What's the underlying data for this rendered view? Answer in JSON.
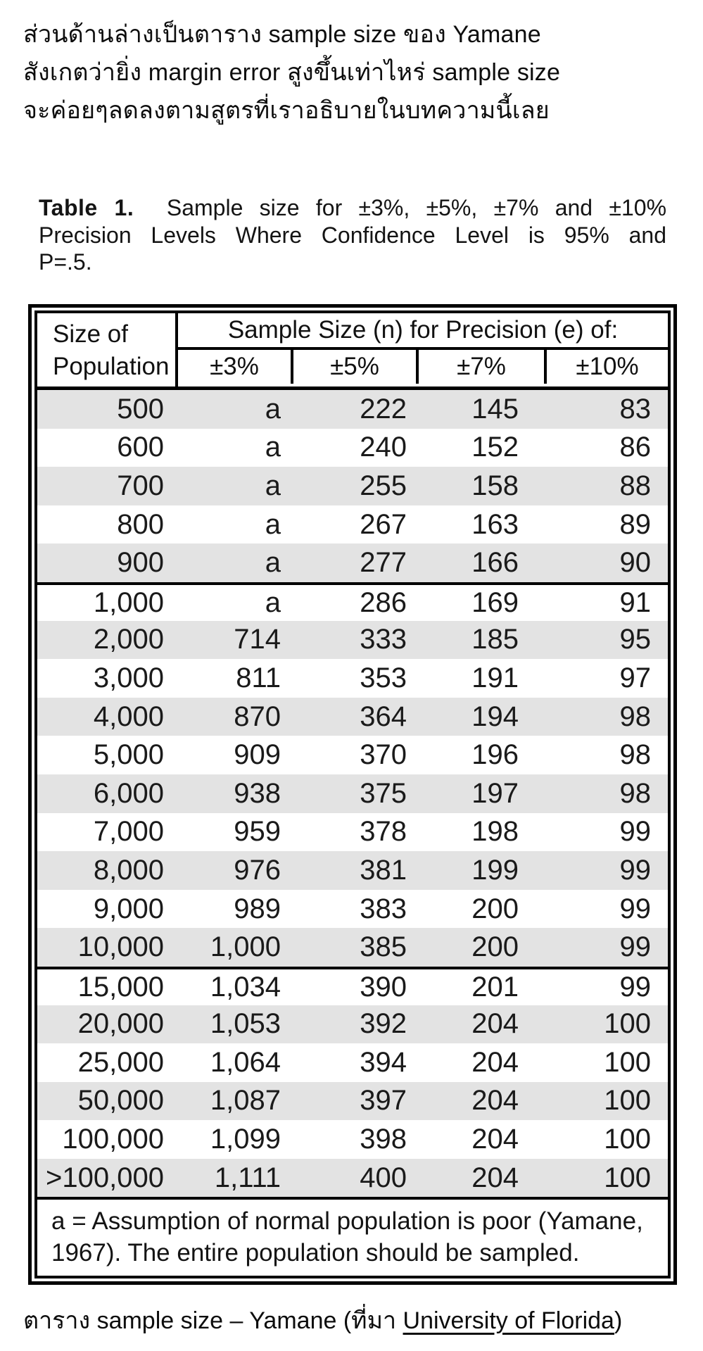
{
  "intro": {
    "lines": [
      "ส่วนด้านล่างเป็นตาราง sample size ของ Yamane",
      "สังเกตว่ายิ่ง margin error สูงขึ้นเท่าไหร่ sample size",
      "จะค่อยๆลดลงตามสูตรที่เราอธิบายในบทความนี้เลย"
    ]
  },
  "table_title": {
    "label": "Table 1.",
    "line1_rest": "Sample size for ±3%, ±5%, ±7% and ±10%",
    "line2": "Precision Levels Where Confidence Level is 95% and",
    "line3": "P=.5."
  },
  "table": {
    "header": {
      "col1_line1": "Size of",
      "col1_line2": "Population",
      "span_label": "Sample Size (n) for Precision (e) of:",
      "precisions": [
        "±3%",
        "±5%",
        "±7%",
        "±10%"
      ]
    },
    "columns": [
      "Size of Population",
      "±3%",
      "±5%",
      "±7%",
      "±10%"
    ],
    "rows": [
      [
        "500",
        "a",
        "222",
        "145",
        "83"
      ],
      [
        "600",
        "a",
        "240",
        "152",
        "86"
      ],
      [
        "700",
        "a",
        "255",
        "158",
        "88"
      ],
      [
        "800",
        "a",
        "267",
        "163",
        "89"
      ],
      [
        "900",
        "a",
        "277",
        "166",
        "90"
      ],
      [
        "1,000",
        "a",
        "286",
        "169",
        "91"
      ],
      [
        "2,000",
        "714",
        "333",
        "185",
        "95"
      ],
      [
        "3,000",
        "811",
        "353",
        "191",
        "97"
      ],
      [
        "4,000",
        "870",
        "364",
        "194",
        "98"
      ],
      [
        "5,000",
        "909",
        "370",
        "196",
        "98"
      ],
      [
        "6,000",
        "938",
        "375",
        "197",
        "98"
      ],
      [
        "7,000",
        "959",
        "378",
        "198",
        "99"
      ],
      [
        "8,000",
        "976",
        "381",
        "199",
        "99"
      ],
      [
        "9,000",
        "989",
        "383",
        "200",
        "99"
      ],
      [
        "10,000",
        "1,000",
        "385",
        "200",
        "99"
      ],
      [
        "15,000",
        "1,034",
        "390",
        "201",
        "99"
      ],
      [
        "20,000",
        "1,053",
        "392",
        "204",
        "100"
      ],
      [
        "25,000",
        "1,064",
        "394",
        "204",
        "100"
      ],
      [
        "50,000",
        "1,087",
        "397",
        "204",
        "100"
      ],
      [
        "100,000",
        "1,099",
        "398",
        "204",
        "100"
      ],
      [
        ">100,000",
        "1,111",
        "400",
        "204",
        "100"
      ]
    ],
    "group_separator_row_indexes": [
      5,
      15
    ],
    "shaded_row_indexes_rule": "even indexes shaded",
    "footnote": "a = Assumption of normal population is poor (Yamane, 1967).  The entire population should be sampled.",
    "colors": {
      "row_shade": "#e3e3e3",
      "border": "#000000",
      "text": "#1a1a1a"
    }
  },
  "caption": {
    "prefix": "ตาราง sample size – Yamane (ที่มา ",
    "link": "University of Florida",
    "suffix": ")"
  }
}
